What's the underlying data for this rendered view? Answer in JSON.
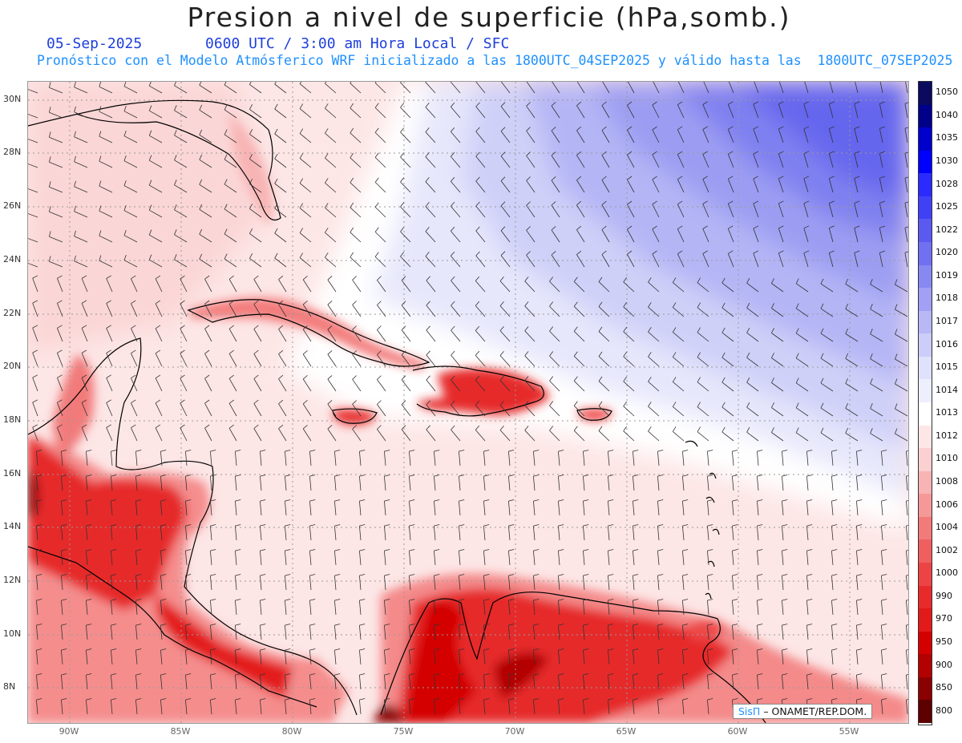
{
  "title": "Presion a nivel de superficie (hPa,somb.)",
  "date": "05-Sep-2025",
  "valid_time": "0600 UTC / 3:00 am Hora Local / SFC",
  "forecast_line": "Pronóstico con el Modelo Atmósferico WRF inicializado a las 1800UTC_04SEP2025 y válido hasta las  1800UTC_07SEP2025",
  "lat_labels": [
    "30N",
    "28N",
    "26N",
    "24N",
    "22N",
    "20N",
    "18N",
    "16N",
    "14N",
    "12N",
    "10N",
    "8N"
  ],
  "lon_labels": [
    "90W",
    "85W",
    "80W",
    "75W",
    "70W",
    "65W",
    "60W",
    "55W"
  ],
  "colorbar": {
    "levels": [
      "1050",
      "1040",
      "1035",
      "1030",
      "1028",
      "1025",
      "1022",
      "1020",
      "1019",
      "1018",
      "1017",
      "1016",
      "1015",
      "1014",
      "1013",
      "1012",
      "1010",
      "1008",
      "1006",
      "1004",
      "1002",
      "1000",
      "990",
      "970",
      "950",
      "900",
      "850",
      "800"
    ],
    "colors": [
      "#0a0a5e",
      "#00008b",
      "#0000cd",
      "#0000ff",
      "#2b2bff",
      "#4040f5",
      "#5a5af0",
      "#7070f0",
      "#8888f2",
      "#a0a0f5",
      "#b8b8f7",
      "#cccdf8",
      "#e0e1fb",
      "#eeeffd",
      "#ffffff",
      "#fde6e6",
      "#fbd0d0",
      "#f8b4b4",
      "#f59898",
      "#f27a7a",
      "#ef5f5f",
      "#ec4444",
      "#e82a2a",
      "#e31a1a",
      "#d40000",
      "#b30000",
      "#8b0000",
      "#5c0000"
    ]
  },
  "credit": {
    "brand": "SisΠ",
    "text": "– ONAMET/REP.DOM."
  }
}
